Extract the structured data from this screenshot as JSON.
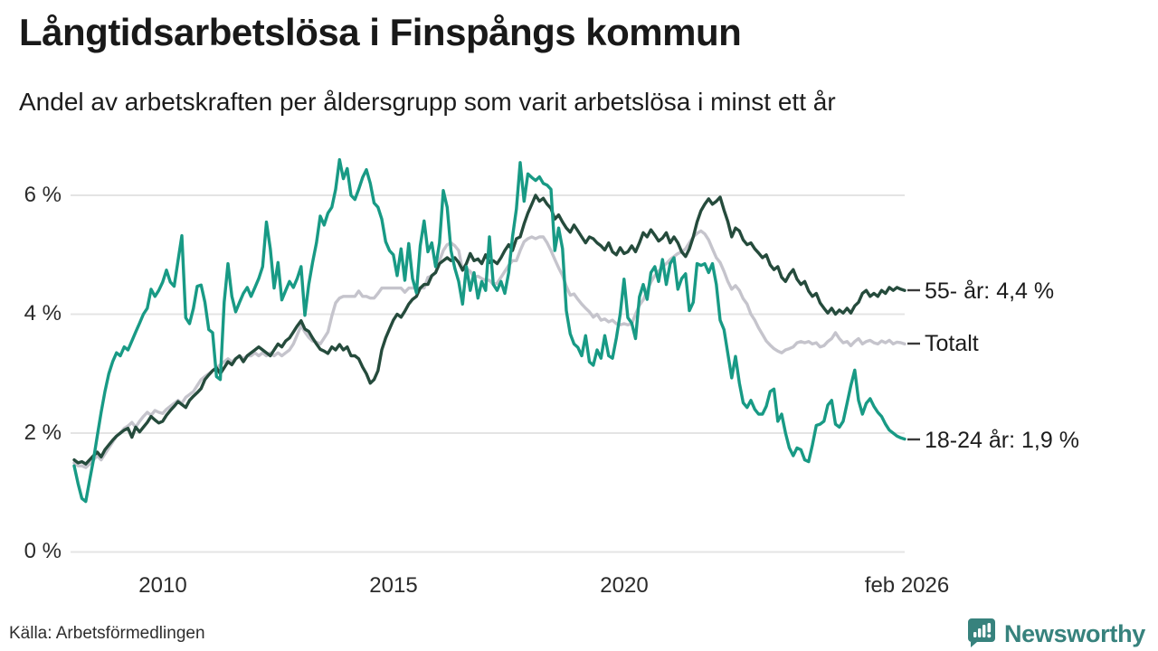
{
  "header": {
    "title": "Långtidsarbetslösa i Finspångs kommun",
    "subtitle": "Andel av arbetskraften per åldersgrupp som varit arbetslösa i minst ett år"
  },
  "footer": {
    "source": "Källa: Arbetsförmedlingen",
    "brand": "Newsworthy"
  },
  "chart_data": {
    "type": "line",
    "title": "Långtidsarbetslösa i Finspångs kommun",
    "subtitle": "Andel av arbetskraften per åldersgrupp som varit arbetslösa i minst ett år",
    "x_unit": "month",
    "x_start": "2008-02",
    "x_end": "2026-02",
    "x_ticks": [
      "2010",
      "2015",
      "2020",
      "feb 2026"
    ],
    "y_ticks": [
      "6 %",
      "4 %",
      "2 %",
      "0 %"
    ],
    "y_range": [
      0,
      6.8
    ],
    "grid": true,
    "legend_position": "right-edge-labels",
    "colors": {
      "age_55": "#254b3c",
      "total": "#c5c4cc",
      "age_18_24": "#189a85",
      "grid": "#e4e4e4",
      "tick_dash": "#3a3a3a",
      "brand_teal": "#37827d"
    },
    "series": [
      {
        "id": "55-ar",
        "label": "55- år: 4,4 %",
        "last_value": 4.4,
        "color": "#254b3c",
        "z": 2,
        "values": [
          1.55,
          1.5,
          1.52,
          1.48,
          1.55,
          1.62,
          1.68,
          1.6,
          1.72,
          1.8,
          1.88,
          1.95,
          2.0,
          2.05,
          2.08,
          1.93,
          2.1,
          2.02,
          2.1,
          2.18,
          2.28,
          2.22,
          2.17,
          2.2,
          2.3,
          2.38,
          2.45,
          2.53,
          2.48,
          2.43,
          2.55,
          2.62,
          2.68,
          2.75,
          2.9,
          2.98,
          3.05,
          3.1,
          3.0,
          3.1,
          3.2,
          3.15,
          3.25,
          3.3,
          3.2,
          3.3,
          3.35,
          3.4,
          3.45,
          3.4,
          3.35,
          3.3,
          3.4,
          3.5,
          3.45,
          3.55,
          3.6,
          3.7,
          3.8,
          3.89,
          3.75,
          3.71,
          3.6,
          3.5,
          3.41,
          3.38,
          3.34,
          3.45,
          3.4,
          3.49,
          3.4,
          3.45,
          3.3,
          3.3,
          3.25,
          3.11,
          3.0,
          2.84,
          2.9,
          3.05,
          3.4,
          3.6,
          3.75,
          3.9,
          4.0,
          3.95,
          4.05,
          4.17,
          4.25,
          4.3,
          4.44,
          4.5,
          4.5,
          4.65,
          4.7,
          4.85,
          4.9,
          4.95,
          4.9,
          4.95,
          4.87,
          4.74,
          4.85,
          5.02,
          4.9,
          4.93,
          4.85,
          5.0,
          4.87,
          4.9,
          4.85,
          4.95,
          5.07,
          5.17,
          5.07,
          5.27,
          5.3,
          5.52,
          5.7,
          5.85,
          6.0,
          5.9,
          5.95,
          5.85,
          5.78,
          5.6,
          5.67,
          5.55,
          5.45,
          5.38,
          5.5,
          5.4,
          5.3,
          5.2,
          5.3,
          5.27,
          5.2,
          5.15,
          5.08,
          5.2,
          5.05,
          5.0,
          5.12,
          5.02,
          5.05,
          5.15,
          5.05,
          5.2,
          5.37,
          5.3,
          5.42,
          5.33,
          5.23,
          5.28,
          5.37,
          5.2,
          5.3,
          5.2,
          5.05,
          4.97,
          5.1,
          5.3,
          5.55,
          5.74,
          5.85,
          5.94,
          5.85,
          5.9,
          5.97,
          5.75,
          5.56,
          5.3,
          5.45,
          5.4,
          5.25,
          5.17,
          5.2,
          5.1,
          5.03,
          4.95,
          5.0,
          4.83,
          4.75,
          4.8,
          4.62,
          4.55,
          4.67,
          4.75,
          4.59,
          4.5,
          4.55,
          4.39,
          4.3,
          4.35,
          4.19,
          4.1,
          4.02,
          4.1,
          4.0,
          4.07,
          4.02,
          4.1,
          4.02,
          4.14,
          4.2,
          4.35,
          4.4,
          4.3,
          4.35,
          4.3,
          4.4,
          4.35,
          4.45,
          4.4,
          4.45,
          4.42,
          4.4
        ]
      },
      {
        "id": "totalt",
        "label": "Totalt",
        "last_value": 3.5,
        "color": "#c5c4cc",
        "z": 1,
        "values": [
          1.5,
          1.45,
          1.45,
          1.42,
          1.48,
          1.55,
          1.62,
          1.55,
          1.65,
          1.75,
          1.85,
          1.95,
          2.0,
          2.08,
          2.12,
          2.18,
          2.1,
          2.2,
          2.28,
          2.35,
          2.3,
          2.38,
          2.35,
          2.33,
          2.4,
          2.45,
          2.5,
          2.55,
          2.5,
          2.6,
          2.65,
          2.7,
          2.8,
          2.9,
          2.95,
          3.0,
          3.05,
          3.1,
          3.15,
          3.2,
          3.25,
          3.2,
          3.25,
          3.3,
          3.25,
          3.3,
          3.3,
          3.35,
          3.3,
          3.35,
          3.3,
          3.35,
          3.3,
          3.35,
          3.3,
          3.35,
          3.4,
          3.5,
          3.65,
          3.81,
          3.7,
          3.61,
          3.55,
          3.53,
          3.5,
          3.6,
          3.7,
          3.97,
          4.19,
          4.27,
          4.3,
          4.3,
          4.3,
          4.3,
          4.39,
          4.3,
          4.3,
          4.27,
          4.27,
          4.35,
          4.44,
          4.44,
          4.44,
          4.44,
          4.44,
          4.44,
          4.37,
          4.44,
          4.44,
          4.44,
          4.44,
          4.44,
          4.62,
          4.64,
          4.7,
          4.9,
          5.07,
          5.17,
          5.2,
          5.15,
          5.07,
          4.74,
          4.77,
          4.72,
          4.62,
          4.64,
          4.6,
          4.57,
          4.57,
          4.5,
          4.52,
          4.62,
          4.72,
          4.82,
          4.9,
          4.9,
          5.07,
          5.22,
          5.27,
          5.3,
          5.27,
          5.3,
          5.3,
          5.2,
          5.07,
          4.92,
          4.78,
          4.65,
          4.47,
          4.32,
          4.34,
          4.25,
          4.17,
          4.1,
          4.04,
          3.95,
          4.0,
          3.9,
          3.92,
          3.87,
          3.9,
          3.84,
          3.82,
          3.84,
          3.82,
          3.84,
          4.0,
          4.15,
          4.24,
          4.4,
          4.54,
          4.65,
          4.72,
          4.8,
          4.85,
          4.92,
          4.97,
          5.02,
          5.05,
          5.1,
          5.2,
          5.3,
          5.36,
          5.4,
          5.35,
          5.25,
          5.1,
          4.95,
          4.87,
          4.72,
          4.55,
          4.42,
          4.48,
          4.4,
          4.26,
          4.17,
          4.0,
          3.9,
          3.77,
          3.66,
          3.55,
          3.48,
          3.42,
          3.38,
          3.35,
          3.4,
          3.42,
          3.45,
          3.52,
          3.54,
          3.52,
          3.54,
          3.5,
          3.52,
          3.45,
          3.47,
          3.54,
          3.59,
          3.69,
          3.59,
          3.52,
          3.54,
          3.47,
          3.54,
          3.59,
          3.5,
          3.54,
          3.56,
          3.52,
          3.5,
          3.55,
          3.52,
          3.56,
          3.5,
          3.53,
          3.52,
          3.5
        ]
      },
      {
        "id": "18-24-ar",
        "label": "18-24 år: 1,9 %",
        "last_value": 1.9,
        "color": "#189a85",
        "z": 3,
        "values": [
          1.45,
          1.15,
          0.9,
          0.85,
          1.2,
          1.55,
          1.95,
          2.35,
          2.7,
          3.0,
          3.2,
          3.35,
          3.3,
          3.45,
          3.4,
          3.55,
          3.7,
          3.85,
          4.0,
          4.1,
          4.42,
          4.3,
          4.4,
          4.54,
          4.74,
          4.54,
          4.47,
          4.9,
          5.32,
          3.94,
          3.84,
          4.1,
          4.47,
          4.49,
          4.2,
          3.74,
          3.69,
          2.95,
          2.9,
          4.2,
          4.85,
          4.3,
          4.04,
          4.2,
          4.35,
          4.45,
          4.3,
          4.45,
          4.6,
          4.8,
          5.55,
          5.1,
          4.44,
          4.87,
          4.24,
          4.4,
          4.55,
          4.45,
          4.6,
          4.8,
          3.98,
          4.5,
          4.87,
          5.2,
          5.65,
          5.5,
          5.7,
          5.8,
          6.1,
          6.6,
          6.28,
          6.45,
          6.0,
          5.93,
          6.1,
          6.3,
          6.43,
          6.2,
          5.87,
          5.8,
          5.6,
          5.22,
          5.07,
          5.0,
          4.65,
          5.1,
          4.57,
          5.19,
          4.6,
          4.36,
          5.15,
          5.57,
          5.05,
          5.2,
          4.8,
          5.2,
          6.08,
          5.8,
          5.07,
          4.77,
          4.55,
          4.17,
          4.8,
          4.4,
          4.7,
          4.27,
          4.55,
          4.4,
          5.3,
          4.5,
          4.4,
          4.55,
          4.35,
          4.7,
          5.3,
          5.77,
          6.55,
          5.9,
          6.36,
          6.3,
          6.25,
          6.31,
          6.2,
          6.17,
          6.1,
          5.07,
          5.45,
          5.1,
          4.06,
          3.67,
          3.5,
          3.44,
          3.3,
          3.64,
          3.2,
          3.14,
          3.4,
          3.26,
          3.64,
          3.3,
          3.26,
          3.6,
          4.0,
          4.59,
          3.94,
          3.85,
          3.59,
          4.29,
          4.5,
          4.25,
          4.7,
          4.8,
          4.55,
          4.92,
          4.5,
          4.85,
          4.95,
          4.42,
          4.6,
          4.68,
          4.06,
          4.2,
          4.85,
          4.82,
          4.85,
          4.7,
          4.85,
          4.5,
          3.9,
          3.74,
          3.34,
          2.93,
          3.29,
          2.84,
          2.51,
          2.43,
          2.55,
          2.4,
          2.32,
          2.32,
          2.45,
          2.7,
          2.74,
          2.2,
          2.32,
          2.0,
          1.75,
          1.62,
          1.75,
          1.72,
          1.55,
          1.52,
          1.8,
          2.13,
          2.15,
          2.2,
          2.47,
          2.55,
          2.15,
          2.1,
          2.2,
          2.5,
          2.8,
          3.06,
          2.55,
          2.32,
          2.5,
          2.58,
          2.45,
          2.35,
          2.28,
          2.15,
          2.05,
          2.0,
          1.95,
          1.92,
          1.9
        ]
      }
    ]
  }
}
